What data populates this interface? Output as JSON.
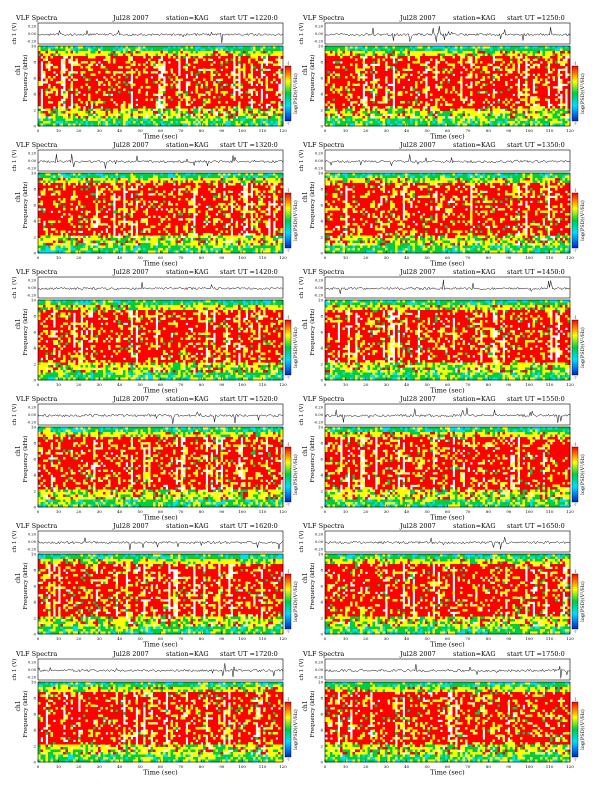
{
  "page_title": "VLF Spectra",
  "colors": {
    "spectrogram": [
      "#ff0000",
      "#ffff00",
      "#00cc44",
      "#00ddff",
      "#0044ff"
    ],
    "background": "#ffffff",
    "trace": "#000000"
  },
  "chart_data": [
    {
      "type": "heatmap",
      "title": "VLF Spectra",
      "date": "Jul28 2007",
      "station": "station=KAG",
      "start_ut": "start  UT =1220:0",
      "top_panel": {
        "ylabel": "ch 1 (V)",
        "y_ticks": [
          "0.20",
          "0.00",
          "-0.20"
        ]
      },
      "ylabel_top": "ch1",
      "ylabel": "Frequency (kHz)",
      "xlabel": "Time (sec)",
      "x_ticks": [
        "0",
        "10",
        "20",
        "30",
        "40",
        "50",
        "60",
        "70",
        "80",
        "90",
        "100",
        "110",
        "120"
      ],
      "y_ticks": [
        "0",
        "2",
        "4",
        "6",
        "8",
        "10"
      ],
      "xlim": [
        0,
        120
      ],
      "ylim": [
        0,
        10
      ],
      "colorbar_label": "log(PSD)(V²/Hz)",
      "colorbar_ticks": [
        "-1",
        "-7"
      ]
    },
    {
      "type": "heatmap",
      "title": "VLF Spectra",
      "date": "Jul28 2007",
      "station": "station=KAG",
      "start_ut": "start  UT =1250:0",
      "top_panel": {
        "ylabel": "ch 1 (V)",
        "y_ticks": [
          "0.20",
          "0.00",
          "-0.20"
        ]
      },
      "ylabel_top": "ch1",
      "ylabel": "Frequency (kHz)",
      "xlabel": "Time (sec)",
      "x_ticks": [
        "0",
        "10",
        "20",
        "30",
        "40",
        "50",
        "60",
        "70",
        "80",
        "90",
        "100",
        "110",
        "120"
      ],
      "y_ticks": [
        "0",
        "2",
        "4",
        "6",
        "8",
        "10"
      ],
      "xlim": [
        0,
        120
      ],
      "ylim": [
        0,
        10
      ],
      "colorbar_label": "log(PSD)(V²/Hz)",
      "colorbar_ticks": [
        "-1",
        "-7"
      ]
    },
    {
      "type": "heatmap",
      "title": "VLF Spectra",
      "date": "Jul28 2007",
      "station": "station=KAG",
      "start_ut": "start  UT =1320:0",
      "top_panel": {
        "ylabel": "ch 1 (V)",
        "y_ticks": [
          "0.20",
          "0.00",
          "-0.20"
        ]
      },
      "ylabel_top": "ch1",
      "ylabel": "Frequency (kHz)",
      "xlabel": "Time (sec)",
      "x_ticks": [
        "0",
        "10",
        "20",
        "30",
        "40",
        "50",
        "60",
        "70",
        "80",
        "90",
        "100",
        "110",
        "120"
      ],
      "y_ticks": [
        "0",
        "2",
        "4",
        "6",
        "8",
        "10"
      ],
      "xlim": [
        0,
        120
      ],
      "ylim": [
        0,
        10
      ],
      "colorbar_label": "log(PSD)(V²/Hz)",
      "colorbar_ticks": [
        "-1",
        "-7"
      ]
    },
    {
      "type": "heatmap",
      "title": "VLF Spectra",
      "date": "Jul28 2007",
      "station": "station=KAG",
      "start_ut": "start  UT =1350:0",
      "top_panel": {
        "ylabel": "ch 1 (V)",
        "y_ticks": [
          "0.20",
          "0.00",
          "-0.20"
        ]
      },
      "ylabel_top": "ch1",
      "ylabel": "Frequency (kHz)",
      "xlabel": "Time (sec)",
      "x_ticks": [
        "0",
        "10",
        "20",
        "30",
        "40",
        "50",
        "60",
        "70",
        "80",
        "90",
        "100",
        "110",
        "120"
      ],
      "y_ticks": [
        "0",
        "2",
        "4",
        "6",
        "8",
        "10"
      ],
      "xlim": [
        0,
        120
      ],
      "ylim": [
        0,
        10
      ],
      "colorbar_label": "log(PSD)(V²/Hz)",
      "colorbar_ticks": [
        "-1",
        "-7"
      ]
    },
    {
      "type": "heatmap",
      "title": "VLF Spectra",
      "date": "Jul28 2007",
      "station": "station=KAG",
      "start_ut": "start  UT =1420:0",
      "top_panel": {
        "ylabel": "ch 1 (V)",
        "y_ticks": [
          "0.20",
          "0.00",
          "-0.20"
        ]
      },
      "ylabel_top": "ch1",
      "ylabel": "Frequency (kHz)",
      "xlabel": "Time (sec)",
      "x_ticks": [
        "0",
        "10",
        "20",
        "30",
        "40",
        "50",
        "60",
        "70",
        "80",
        "90",
        "100",
        "110",
        "120"
      ],
      "y_ticks": [
        "0",
        "2",
        "4",
        "6",
        "8",
        "10"
      ],
      "xlim": [
        0,
        120
      ],
      "ylim": [
        0,
        10
      ],
      "colorbar_label": "log(PSD)(V²/Hz)",
      "colorbar_ticks": [
        "-1",
        "-7"
      ]
    },
    {
      "type": "heatmap",
      "title": "VLF Spectra",
      "date": "Jul28 2007",
      "station": "station=KAG",
      "start_ut": "start  UT =1450:0",
      "top_panel": {
        "ylabel": "ch 1 (V)",
        "y_ticks": [
          "0.20",
          "0.00",
          "-0.20"
        ]
      },
      "ylabel_top": "ch1",
      "ylabel": "Frequency (kHz)",
      "xlabel": "Time (sec)",
      "x_ticks": [
        "0",
        "10",
        "20",
        "30",
        "40",
        "50",
        "60",
        "70",
        "80",
        "90",
        "100",
        "110",
        "120"
      ],
      "y_ticks": [
        "0",
        "2",
        "4",
        "6",
        "8",
        "10"
      ],
      "xlim": [
        0,
        120
      ],
      "ylim": [
        0,
        10
      ],
      "colorbar_label": "log(PSD)(V²/Hz)",
      "colorbar_ticks": [
        "-1",
        "-7"
      ]
    },
    {
      "type": "heatmap",
      "title": "VLF Spectra",
      "date": "Jul28 2007",
      "station": "station=KAG",
      "start_ut": "start  UT =1520:0",
      "top_panel": {
        "ylabel": "ch 1 (V)",
        "y_ticks": [
          "0.20",
          "0.00",
          "-0.20"
        ]
      },
      "ylabel_top": "ch1",
      "ylabel": "Frequency (kHz)",
      "xlabel": "Time (sec)",
      "x_ticks": [
        "0",
        "10",
        "20",
        "30",
        "40",
        "50",
        "60",
        "70",
        "80",
        "90",
        "100",
        "110",
        "120"
      ],
      "y_ticks": [
        "0",
        "2",
        "4",
        "6",
        "8",
        "10"
      ],
      "xlim": [
        0,
        120
      ],
      "ylim": [
        0,
        10
      ],
      "colorbar_label": "log(PSD)(V²/Hz)",
      "colorbar_ticks": [
        "-1",
        "-7"
      ]
    },
    {
      "type": "heatmap",
      "title": "VLF Spectra",
      "date": "Jul28 2007",
      "station": "station=KAG",
      "start_ut": "start  UT =1550:0",
      "top_panel": {
        "ylabel": "ch 1 (V)",
        "y_ticks": [
          "0.20",
          "0.00",
          "-0.20"
        ]
      },
      "ylabel_top": "ch1",
      "ylabel": "Frequency (kHz)",
      "xlabel": "Time (sec)",
      "x_ticks": [
        "0",
        "10",
        "20",
        "30",
        "40",
        "50",
        "60",
        "70",
        "80",
        "90",
        "100",
        "110",
        "120"
      ],
      "y_ticks": [
        "0",
        "2",
        "4",
        "6",
        "8",
        "10"
      ],
      "xlim": [
        0,
        120
      ],
      "ylim": [
        0,
        10
      ],
      "colorbar_label": "log(PSD)(V²/Hz)",
      "colorbar_ticks": [
        "-1",
        "-7"
      ]
    },
    {
      "type": "heatmap",
      "title": "VLF Spectra",
      "date": "Jul28 2007",
      "station": "station=KAG",
      "start_ut": "start  UT =1620:0",
      "top_panel": {
        "ylabel": "ch 1 (V)",
        "y_ticks": [
          "0.20",
          "0.00",
          "-0.20"
        ]
      },
      "ylabel_top": "ch1",
      "ylabel": "Frequency (kHz)",
      "xlabel": "Time (sec)",
      "x_ticks": [
        "0",
        "10",
        "20",
        "30",
        "40",
        "50",
        "60",
        "70",
        "80",
        "90",
        "100",
        "110",
        "120"
      ],
      "y_ticks": [
        "0",
        "2",
        "4",
        "6",
        "8",
        "10"
      ],
      "xlim": [
        0,
        120
      ],
      "ylim": [
        0,
        10
      ],
      "colorbar_label": "log(PSD)(V²/Hz)",
      "colorbar_ticks": [
        "-1",
        "-7"
      ]
    },
    {
      "type": "heatmap",
      "title": "VLF Spectra",
      "date": "Jul28 2007",
      "station": "station=KAG",
      "start_ut": "start  UT =1650:0",
      "top_panel": {
        "ylabel": "ch 1 (V)",
        "y_ticks": [
          "0.20",
          "0.00",
          "-0.20"
        ]
      },
      "ylabel_top": "ch1",
      "ylabel": "Frequency (kHz)",
      "xlabel": "Time (sec)",
      "x_ticks": [
        "0",
        "10",
        "20",
        "30",
        "40",
        "50",
        "60",
        "70",
        "80",
        "90",
        "100",
        "110",
        "120"
      ],
      "y_ticks": [
        "0",
        "2",
        "4",
        "6",
        "8",
        "10"
      ],
      "xlim": [
        0,
        120
      ],
      "ylim": [
        0,
        10
      ],
      "colorbar_label": "log(PSD)(V²/Hz)",
      "colorbar_ticks": [
        "-1",
        "-7"
      ]
    },
    {
      "type": "heatmap",
      "title": "VLF Spectra",
      "date": "Jul28 2007",
      "station": "station=KAG",
      "start_ut": "start  UT =1720:0",
      "top_panel": {
        "ylabel": "ch 1 (V)",
        "y_ticks": [
          "0.20",
          "0.00",
          "-0.20"
        ]
      },
      "ylabel_top": "ch1",
      "ylabel": "Frequency (kHz)",
      "xlabel": "Time (sec)",
      "x_ticks": [
        "0",
        "10",
        "20",
        "30",
        "40",
        "50",
        "60",
        "70",
        "80",
        "90",
        "100",
        "110",
        "120"
      ],
      "y_ticks": [
        "0",
        "2",
        "4",
        "6",
        "8",
        "10"
      ],
      "xlim": [
        0,
        120
      ],
      "ylim": [
        0,
        10
      ],
      "colorbar_label": "log(PSD)(V²/Hz)",
      "colorbar_ticks": [
        "-1",
        "-7"
      ]
    },
    {
      "type": "heatmap",
      "title": "VLF Spectra",
      "date": "Jul28 2007",
      "station": "station=KAG",
      "start_ut": "start  UT =1750:0",
      "top_panel": {
        "ylabel": "ch 1 (V)",
        "y_ticks": [
          "0.20",
          "0.00",
          "-0.20"
        ]
      },
      "ylabel_top": "ch1",
      "ylabel": "Frequency (kHz)",
      "xlabel": "Time (sec)",
      "x_ticks": [
        "0",
        "10",
        "20",
        "30",
        "40",
        "50",
        "60",
        "70",
        "80",
        "90",
        "100",
        "110",
        "120"
      ],
      "y_ticks": [
        "0",
        "2",
        "4",
        "6",
        "8",
        "10"
      ],
      "xlim": [
        0,
        120
      ],
      "ylim": [
        0,
        10
      ],
      "colorbar_label": "log(PSD)(V²/Hz)",
      "colorbar_ticks": [
        "-1",
        "-7"
      ]
    }
  ]
}
